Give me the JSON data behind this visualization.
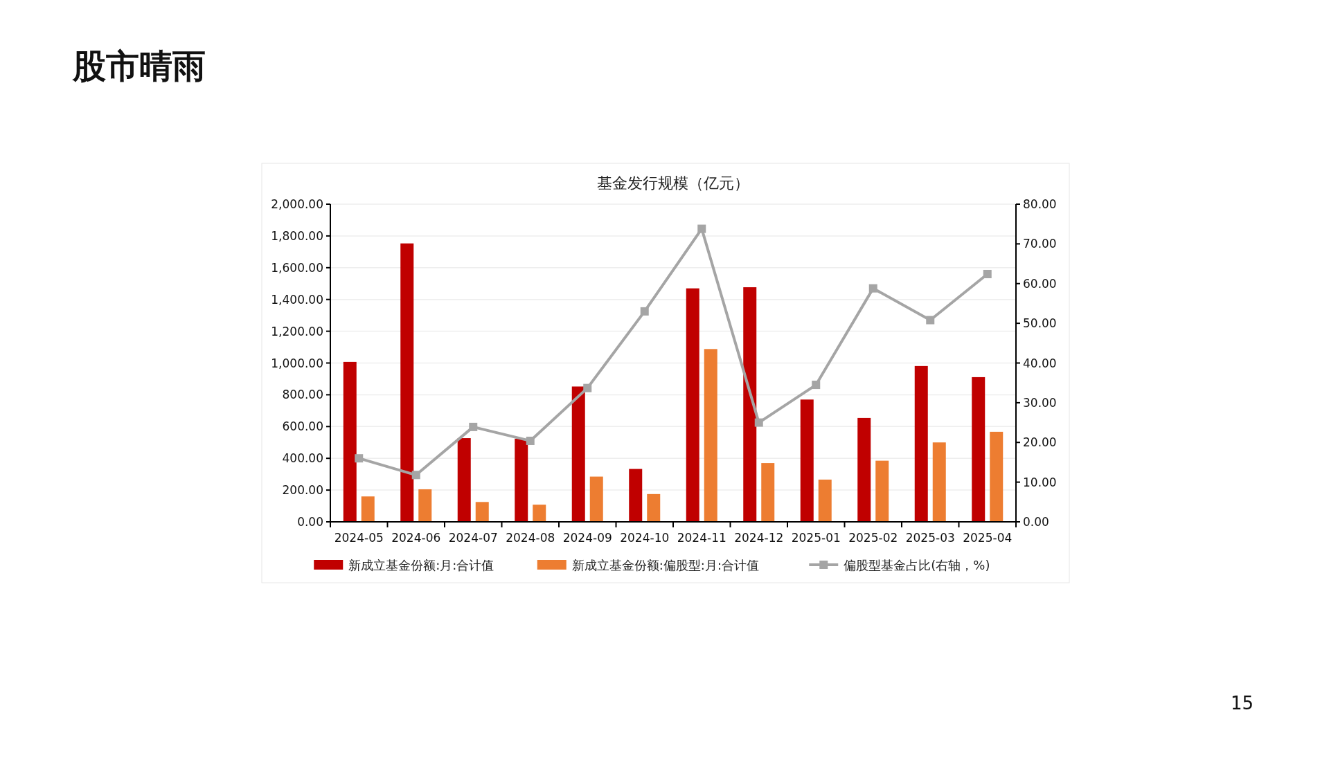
{
  "chart_data": {
    "type": "bar",
    "title": "基金发行规模（亿元）",
    "categories": [
      "2024-05",
      "2024-06",
      "2024-07",
      "2024-08",
      "2024-09",
      "2024-10",
      "2024-11",
      "2024-12",
      "2025-01",
      "2025-02",
      "2025-03",
      "2025-04"
    ],
    "series": [
      {
        "name": "新成立基金份额:月:合计值",
        "color": "#c00000",
        "values": [
          1007,
          1753,
          527,
          523,
          852,
          333,
          1470,
          1477,
          770,
          654,
          981,
          911
        ]
      },
      {
        "name": "新成立基金份额:偏股型:月:合计值",
        "color": "#ed7d31",
        "values": [
          160,
          205,
          125,
          108,
          285,
          175,
          1088,
          370,
          266,
          385,
          500,
          567
        ]
      },
      {
        "name": "偏股型基金占比(右轴，%)",
        "color": "#a5a5a5",
        "type": "line",
        "axis": "y2",
        "marker": "square",
        "values": [
          16.0,
          11.8,
          23.9,
          20.4,
          33.7,
          53.0,
          73.8,
          25.0,
          34.5,
          58.8,
          50.8,
          62.4
        ]
      }
    ],
    "ylim": [
      0,
      2000
    ],
    "yticks": [
      {
        "value": 0,
        "label": "0.00"
      },
      {
        "value": 200,
        "label": "200.00"
      },
      {
        "value": 400,
        "label": "400.00"
      },
      {
        "value": 600,
        "label": "600.00"
      },
      {
        "value": 800,
        "label": "800.00"
      },
      {
        "value": 1000,
        "label": "1,000.00"
      },
      {
        "value": 1200,
        "label": "1,200.00"
      },
      {
        "value": 1400,
        "label": "1,400.00"
      },
      {
        "value": 1600,
        "label": "1,600.00"
      },
      {
        "value": 1800,
        "label": "1,800.00"
      },
      {
        "value": 2000,
        "label": "2,000.00"
      }
    ],
    "y2lim": [
      0,
      80
    ],
    "y2ticks": [
      {
        "value": 0,
        "label": "0.00"
      },
      {
        "value": 10,
        "label": "10.00"
      },
      {
        "value": 20,
        "label": "20.00"
      },
      {
        "value": 30,
        "label": "30.00"
      },
      {
        "value": 40,
        "label": "40.00"
      },
      {
        "value": 50,
        "label": "50.00"
      },
      {
        "value": 60,
        "label": "60.00"
      },
      {
        "value": 70,
        "label": "70.00"
      },
      {
        "value": 80,
        "label": "80.00"
      }
    ],
    "grid": "y",
    "legend": "bottom",
    "annotations": [
      "股市晴雨",
      "15"
    ]
  }
}
